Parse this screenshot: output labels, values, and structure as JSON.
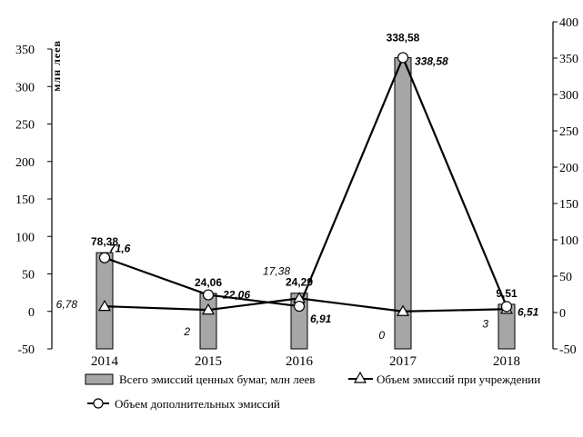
{
  "chart_data": {
    "type": "bar",
    "ylabel": "млн леев",
    "ylim": [
      -50,
      350
    ],
    "yticks_left": [
      "350",
      "300",
      "250",
      "200",
      "150",
      "100",
      "50",
      "0",
      "-50"
    ],
    "yticks_right": [
      "400",
      "350",
      "300",
      "250",
      "200",
      "150",
      "100",
      "50",
      "0",
      "-50"
    ],
    "categories": [
      "2014",
      "2015",
      "2016",
      "2017",
      "2018"
    ],
    "grid": false,
    "legend_position": "bottom",
    "series": [
      {
        "name": "Всего эмиссий ценных бумаг, млн леев",
        "kind": "bar",
        "color": "#a6a6a6",
        "values": [
          78.38,
          24.06,
          24.29,
          338.58,
          9.51
        ],
        "labels": [
          "78,38",
          "24,06",
          "24,29",
          "338,58",
          "9,51"
        ]
      },
      {
        "name": "Объем эмиссий при учреждении",
        "kind": "line",
        "marker": "triangle",
        "values": [
          6.78,
          2,
          17.38,
          0,
          3
        ],
        "labels": [
          "6,78",
          "2",
          "17,38",
          "0",
          "3"
        ]
      },
      {
        "name": "Объем дополнительных эмиссий",
        "kind": "line",
        "marker": "circle",
        "values": [
          71.6,
          22.06,
          6.91,
          338.58,
          6.51
        ],
        "labels": [
          "71,6",
          "22,06",
          "6,91",
          "338,58",
          "6,51"
        ]
      }
    ]
  }
}
